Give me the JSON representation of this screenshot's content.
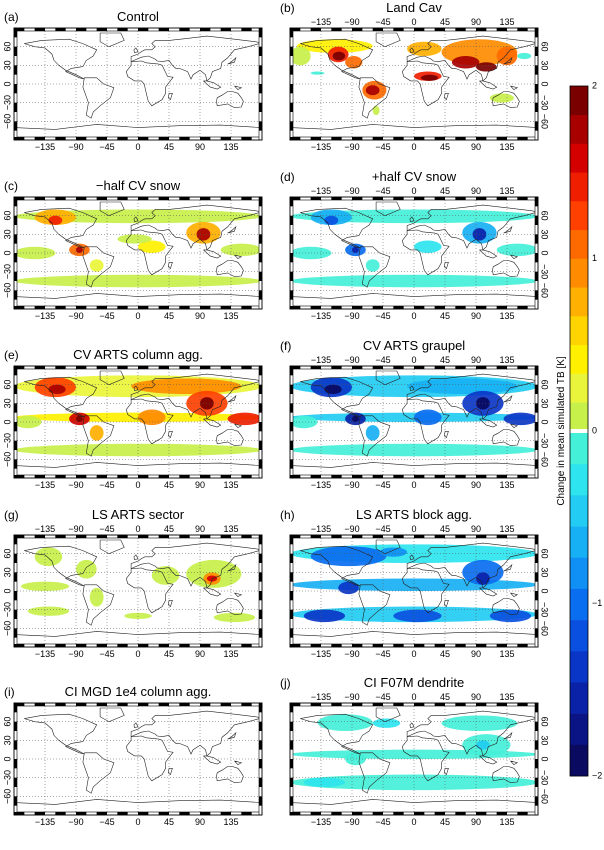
{
  "chart_data": {
    "type": "heatmap",
    "colorbar": {
      "label": "Change in mean simulated TB [K]",
      "range": [
        -2,
        2
      ],
      "ticks": [
        2,
        1,
        0,
        -1,
        -2
      ],
      "colors_positive": [
        "#c8f04a",
        "#e9f53a",
        "#fff000",
        "#ffd400",
        "#ffb000",
        "#ff8c00",
        "#ff6a00",
        "#ff4000",
        "#f01e00",
        "#d40000",
        "#a80000",
        "#7a0000"
      ],
      "colors_negative": [
        "#44f0d8",
        "#2ee4ee",
        "#22ccf2",
        "#18b0f4",
        "#1090f4",
        "#0a6ef0",
        "#0a50e0",
        "#0a36c8",
        "#0a22a8",
        "#0a1485",
        "#0a0a60"
      ]
    },
    "lon_ticks": [
      -135,
      -90,
      -45,
      0,
      45,
      90,
      135
    ],
    "lat_ticks": [
      60,
      30,
      0,
      -30,
      -60
    ],
    "panels": [
      {
        "id": "a",
        "label": "(a)",
        "title": "Control",
        "pattern": "none"
      },
      {
        "id": "b",
        "label": "(b)",
        "title": "Land Cav",
        "pattern": "land_strong"
      },
      {
        "id": "c",
        "label": "(c)",
        "title": "−half CV snow",
        "pattern": "pos_weak"
      },
      {
        "id": "d",
        "label": "(d)",
        "title": "+half CV snow",
        "pattern": "neg_weak"
      },
      {
        "id": "e",
        "label": "(e)",
        "title": "CV ARTS column agg.",
        "pattern": "pos_strong"
      },
      {
        "id": "f",
        "label": "(f)",
        "title": "CV ARTS graupel",
        "pattern": "neg_strong"
      },
      {
        "id": "g",
        "label": "(g)",
        "title": "LS ARTS sector",
        "pattern": "pos_light"
      },
      {
        "id": "h",
        "label": "(h)",
        "title": "LS ARTS block agg.",
        "pattern": "neg_mid"
      },
      {
        "id": "i",
        "label": "(i)",
        "title": "CI MGD 1e4 column agg.",
        "pattern": "none"
      },
      {
        "id": "j",
        "label": "(j)",
        "title": "CI F07M dendrite",
        "pattern": "neg_light"
      }
    ]
  }
}
